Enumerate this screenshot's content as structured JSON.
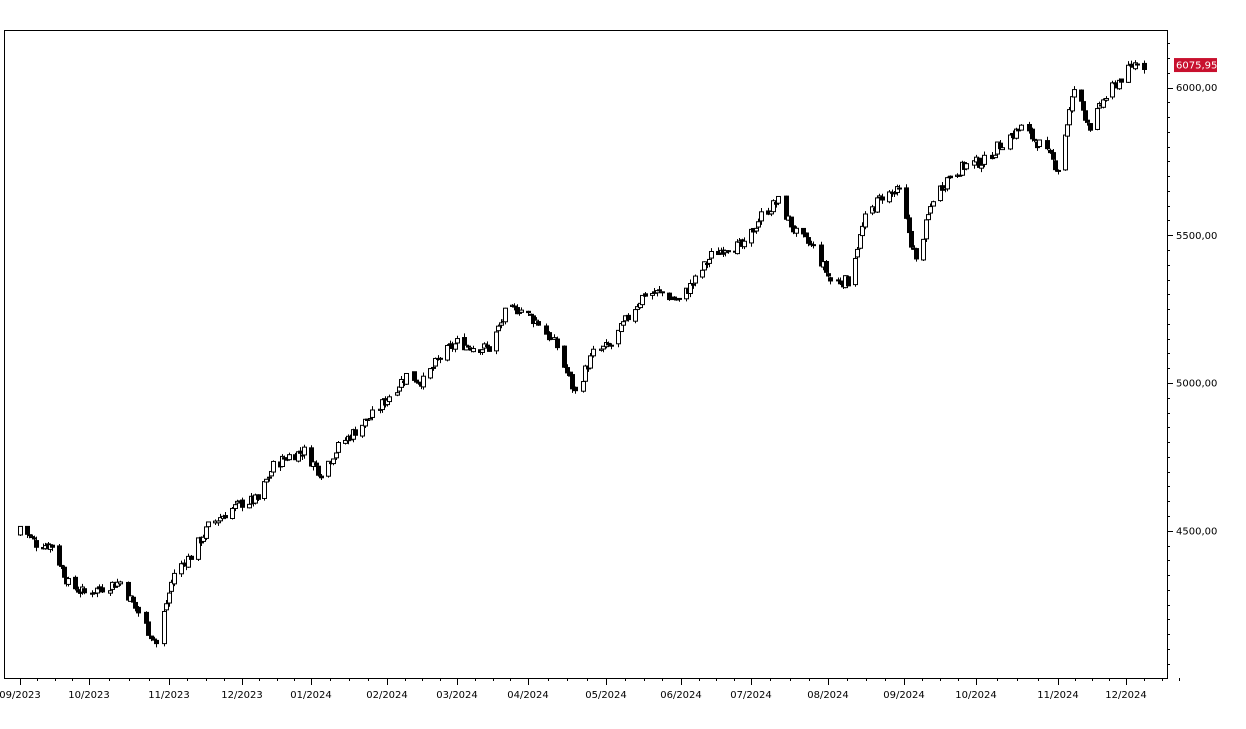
{
  "chart_data": {
    "type": "candlestick",
    "title": "",
    "xlabel": "",
    "ylabel": "",
    "x_tick_labels": [
      "09/2023",
      "10/2023",
      "11/2023",
      "12/2023",
      "01/2024",
      "02/2024",
      "03/2024",
      "04/2024",
      "05/2024",
      "06/2024",
      "07/2024",
      "08/2024",
      "09/2024",
      "10/2024",
      "11/2024",
      "12/2024"
    ],
    "y_ticks": [
      4500,
      5000,
      5500,
      6000
    ],
    "y_tick_labels": [
      "4500,00",
      "5000,00",
      "5500,00",
      "6000,00"
    ],
    "ylim": [
      4050,
      6200
    ],
    "grid": false,
    "last_value": 6075.95,
    "last_value_label": "6075,95",
    "colors": {
      "last_value_bg": "#c8102e",
      "candle": "#000000",
      "up_fill": "#ffffff",
      "down_fill": "#000000"
    },
    "closes_weekly": [
      {
        "date": "2023-09-01",
        "close": 4515
      },
      {
        "date": "2023-09-08",
        "close": 4457
      },
      {
        "date": "2023-09-15",
        "close": 4450
      },
      {
        "date": "2023-09-22",
        "close": 4320
      },
      {
        "date": "2023-09-29",
        "close": 4288
      },
      {
        "date": "2023-10-06",
        "close": 4308
      },
      {
        "date": "2023-10-13",
        "close": 4327
      },
      {
        "date": "2023-10-20",
        "close": 4224
      },
      {
        "date": "2023-10-27",
        "close": 4117
      },
      {
        "date": "2023-11-03",
        "close": 4358
      },
      {
        "date": "2023-11-10",
        "close": 4415
      },
      {
        "date": "2023-11-17",
        "close": 4514
      },
      {
        "date": "2023-11-24",
        "close": 4559
      },
      {
        "date": "2023-12-01",
        "close": 4594
      },
      {
        "date": "2023-12-08",
        "close": 4604
      },
      {
        "date": "2023-12-15",
        "close": 4719
      },
      {
        "date": "2023-12-22",
        "close": 4754
      },
      {
        "date": "2023-12-29",
        "close": 4769
      },
      {
        "date": "2024-01-05",
        "close": 4697
      },
      {
        "date": "2024-01-12",
        "close": 4783
      },
      {
        "date": "2024-01-19",
        "close": 4839
      },
      {
        "date": "2024-01-26",
        "close": 4890
      },
      {
        "date": "2024-02-02",
        "close": 4958
      },
      {
        "date": "2024-02-09",
        "close": 5026
      },
      {
        "date": "2024-02-16",
        "close": 5005
      },
      {
        "date": "2024-02-23",
        "close": 5088
      },
      {
        "date": "2024-03-01",
        "close": 5137
      },
      {
        "date": "2024-03-08",
        "close": 5123
      },
      {
        "date": "2024-03-15",
        "close": 5117
      },
      {
        "date": "2024-03-22",
        "close": 5234
      },
      {
        "date": "2024-03-28",
        "close": 5254
      },
      {
        "date": "2024-04-05",
        "close": 5204
      },
      {
        "date": "2024-04-12",
        "close": 5123
      },
      {
        "date": "2024-04-19",
        "close": 4967
      },
      {
        "date": "2024-04-26",
        "close": 5100
      },
      {
        "date": "2024-05-03",
        "close": 5128
      },
      {
        "date": "2024-05-10",
        "close": 5223
      },
      {
        "date": "2024-05-17",
        "close": 5303
      },
      {
        "date": "2024-05-24",
        "close": 5305
      },
      {
        "date": "2024-05-31",
        "close": 5278
      },
      {
        "date": "2024-06-07",
        "close": 5347
      },
      {
        "date": "2024-06-14",
        "close": 5431
      },
      {
        "date": "2024-06-21",
        "close": 5465
      },
      {
        "date": "2024-06-28",
        "close": 5460
      },
      {
        "date": "2024-07-05",
        "close": 5567
      },
      {
        "date": "2024-07-12",
        "close": 5615
      },
      {
        "date": "2024-07-19",
        "close": 5505
      },
      {
        "date": "2024-07-26",
        "close": 5459
      },
      {
        "date": "2024-08-02",
        "close": 5346
      },
      {
        "date": "2024-08-09",
        "close": 5344
      },
      {
        "date": "2024-08-16",
        "close": 5554
      },
      {
        "date": "2024-08-23",
        "close": 5634
      },
      {
        "date": "2024-08-30",
        "close": 5648
      },
      {
        "date": "2024-09-06",
        "close": 5408
      },
      {
        "date": "2024-09-13",
        "close": 5626
      },
      {
        "date": "2024-09-20",
        "close": 5702
      },
      {
        "date": "2024-09-27",
        "close": 5738
      },
      {
        "date": "2024-10-04",
        "close": 5751
      },
      {
        "date": "2024-10-11",
        "close": 5815
      },
      {
        "date": "2024-10-18",
        "close": 5864
      },
      {
        "date": "2024-10-25",
        "close": 5808
      },
      {
        "date": "2024-11-01",
        "close": 5728
      },
      {
        "date": "2024-11-08",
        "close": 5995
      },
      {
        "date": "2024-11-15",
        "close": 5870
      },
      {
        "date": "2024-11-22",
        "close": 5969
      },
      {
        "date": "2024-11-29",
        "close": 6032
      },
      {
        "date": "2024-12-06",
        "close": 6090
      },
      {
        "date": "2024-12-09",
        "close": 6075.95
      }
    ]
  }
}
